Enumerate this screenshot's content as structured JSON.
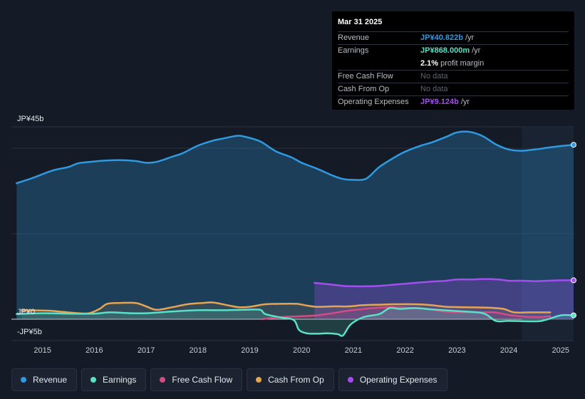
{
  "tooltip": {
    "date": "Mar 31 2025",
    "rows": [
      {
        "label": "Revenue",
        "value": "JP¥40.822b",
        "unit": "/yr",
        "color": "#2f9ae0"
      },
      {
        "label": "Earnings",
        "value": "JP¥868.000m",
        "unit": "/yr",
        "color": "#5ae0c6"
      },
      {
        "label": "",
        "value": "2.1%",
        "unit": "profit margin",
        "color": "#ffffff"
      },
      {
        "label": "Free Cash Flow",
        "value": "No data",
        "unit": "",
        "color": "#5c6370"
      },
      {
        "label": "Cash From Op",
        "value": "No data",
        "unit": "",
        "color": "#5c6370"
      },
      {
        "label": "Operating Expenses",
        "value": "JP¥9.124b",
        "unit": "/yr",
        "color": "#a54ef0"
      }
    ]
  },
  "legend": [
    {
      "label": "Revenue",
      "color": "#2f9ae0"
    },
    {
      "label": "Earnings",
      "color": "#5ae0c6"
    },
    {
      "label": "Free Cash Flow",
      "color": "#d14d83"
    },
    {
      "label": "Cash From Op",
      "color": "#e5a552"
    },
    {
      "label": "Operating Expenses",
      "color": "#a54ef0"
    }
  ],
  "chart_data": {
    "type": "line",
    "y_axis_labels": [
      "JP¥45b",
      "JP¥0",
      "-JP¥5b"
    ],
    "ylim": [
      -5,
      45
    ],
    "x_ticks": [
      "2015",
      "2016",
      "2017",
      "2018",
      "2019",
      "2020",
      "2021",
      "2022",
      "2023",
      "2024",
      "2025"
    ],
    "xlim": [
      2014.4,
      2025.25
    ],
    "forecast_start": 2024.25,
    "series": [
      {
        "name": "Revenue",
        "color": "#2f9ae0",
        "points": [
          [
            2014.5,
            31.8
          ],
          [
            2014.8,
            33
          ],
          [
            2015.2,
            34.8
          ],
          [
            2015.5,
            35.6
          ],
          [
            2015.7,
            36.5
          ],
          [
            2016.0,
            36.9
          ],
          [
            2016.2,
            37.1
          ],
          [
            2016.5,
            37.2
          ],
          [
            2016.8,
            37
          ],
          [
            2017.0,
            36.6
          ],
          [
            2017.2,
            36.8
          ],
          [
            2017.5,
            38
          ],
          [
            2017.7,
            38.8
          ],
          [
            2018.0,
            40.6
          ],
          [
            2018.3,
            41.8
          ],
          [
            2018.5,
            42.3
          ],
          [
            2018.75,
            42.9
          ],
          [
            2018.9,
            42.7
          ],
          [
            2019.2,
            41.6
          ],
          [
            2019.5,
            39.3
          ],
          [
            2019.8,
            37.9
          ],
          [
            2020.0,
            36.6
          ],
          [
            2020.3,
            35.2
          ],
          [
            2020.6,
            33.6
          ],
          [
            2020.8,
            32.8
          ],
          [
            2021.0,
            32.6
          ],
          [
            2021.25,
            32.9
          ],
          [
            2021.5,
            35.6
          ],
          [
            2021.8,
            37.9
          ],
          [
            2022.0,
            39.2
          ],
          [
            2022.3,
            40.6
          ],
          [
            2022.5,
            41.3
          ],
          [
            2022.8,
            42.7
          ],
          [
            2023.0,
            43.7
          ],
          [
            2023.25,
            43.8
          ],
          [
            2023.5,
            42.8
          ],
          [
            2023.75,
            40.9
          ],
          [
            2024.0,
            39.7
          ],
          [
            2024.25,
            39.4
          ],
          [
            2024.5,
            39.7
          ],
          [
            2024.8,
            40.2
          ],
          [
            2025.0,
            40.5
          ],
          [
            2025.25,
            40.8
          ]
        ]
      },
      {
        "name": "Earnings",
        "color": "#5ae0c6",
        "points": [
          [
            2014.5,
            1.2
          ],
          [
            2015.0,
            1.4
          ],
          [
            2015.5,
            1.3
          ],
          [
            2016.0,
            1.3
          ],
          [
            2016.3,
            1.6
          ],
          [
            2016.7,
            1.4
          ],
          [
            2017.0,
            1.4
          ],
          [
            2017.5,
            1.8
          ],
          [
            2018.0,
            2.1
          ],
          [
            2018.5,
            2.1
          ],
          [
            2018.9,
            2.2
          ],
          [
            2019.2,
            2.2
          ],
          [
            2019.3,
            1.2
          ],
          [
            2019.6,
            0.4
          ],
          [
            2019.85,
            -0.2
          ],
          [
            2019.95,
            -2.5
          ],
          [
            2020.1,
            -3.3
          ],
          [
            2020.3,
            -3.4
          ],
          [
            2020.5,
            -3.3
          ],
          [
            2020.7,
            -3.5
          ],
          [
            2020.8,
            -3.8
          ],
          [
            2020.95,
            -1.2
          ],
          [
            2021.2,
            0.5
          ],
          [
            2021.5,
            1.2
          ],
          [
            2021.7,
            2.6
          ],
          [
            2021.9,
            2.4
          ],
          [
            2022.2,
            2.6
          ],
          [
            2022.5,
            2.3
          ],
          [
            2023.0,
            1.9
          ],
          [
            2023.5,
            1.4
          ],
          [
            2023.75,
            -0.4
          ],
          [
            2024.0,
            -0.4
          ],
          [
            2024.5,
            -0.5
          ],
          [
            2024.7,
            -0.2
          ],
          [
            2025.0,
            0.9
          ],
          [
            2025.25,
            0.9
          ]
        ]
      },
      {
        "name": "Free Cash Flow",
        "color": "#d14d83",
        "points": [
          [
            2019.25,
            0
          ],
          [
            2019.5,
            0.4
          ],
          [
            2019.8,
            0.6
          ],
          [
            2020.0,
            0.7
          ],
          [
            2020.3,
            0.9
          ],
          [
            2020.6,
            1.4
          ],
          [
            2020.9,
            2.0
          ],
          [
            2021.2,
            2.4
          ],
          [
            2021.5,
            2.7
          ],
          [
            2021.8,
            2.8
          ],
          [
            2022.2,
            2.6
          ],
          [
            2022.5,
            2.3
          ],
          [
            2022.8,
            1.7
          ],
          [
            2023.2,
            1.6
          ],
          [
            2023.7,
            1.6
          ],
          [
            2024.0,
            1.0
          ],
          [
            2024.3,
            0.6
          ],
          [
            2024.6,
            0.5
          ],
          [
            2024.8,
            0.7
          ]
        ]
      },
      {
        "name": "Cash From Op",
        "color": "#e5a552",
        "points": [
          [
            2014.6,
            2.1
          ],
          [
            2015.1,
            2.0
          ],
          [
            2015.4,
            1.7
          ],
          [
            2015.7,
            1.4
          ],
          [
            2015.9,
            1.4
          ],
          [
            2016.1,
            2.4
          ],
          [
            2016.25,
            3.6
          ],
          [
            2016.5,
            3.8
          ],
          [
            2016.8,
            3.8
          ],
          [
            2017.0,
            3.0
          ],
          [
            2017.2,
            2.2
          ],
          [
            2017.5,
            2.8
          ],
          [
            2017.8,
            3.5
          ],
          [
            2018.1,
            3.8
          ],
          [
            2018.3,
            3.9
          ],
          [
            2018.6,
            3.2
          ],
          [
            2018.8,
            2.8
          ],
          [
            2019.0,
            2.9
          ],
          [
            2019.3,
            3.5
          ],
          [
            2019.6,
            3.6
          ],
          [
            2019.9,
            3.6
          ],
          [
            2020.1,
            3.2
          ],
          [
            2020.3,
            2.9
          ],
          [
            2020.6,
            3.0
          ],
          [
            2020.9,
            3.0
          ],
          [
            2021.2,
            3.3
          ],
          [
            2021.5,
            3.4
          ],
          [
            2021.8,
            3.5
          ],
          [
            2022.2,
            3.5
          ],
          [
            2022.5,
            3.3
          ],
          [
            2022.8,
            2.9
          ],
          [
            2023.2,
            2.8
          ],
          [
            2023.6,
            2.7
          ],
          [
            2023.9,
            2.4
          ],
          [
            2024.1,
            1.6
          ],
          [
            2024.4,
            1.6
          ],
          [
            2024.8,
            1.6
          ]
        ]
      },
      {
        "name": "Operating Expenses",
        "color": "#a54ef0",
        "points": [
          [
            2020.25,
            8.5
          ],
          [
            2020.5,
            8.2
          ],
          [
            2020.8,
            7.8
          ],
          [
            2021.0,
            7.7
          ],
          [
            2021.25,
            7.7
          ],
          [
            2021.5,
            7.8
          ],
          [
            2021.8,
            8.1
          ],
          [
            2022.0,
            8.3
          ],
          [
            2022.3,
            8.6
          ],
          [
            2022.5,
            8.8
          ],
          [
            2022.8,
            9.0
          ],
          [
            2023.0,
            9.3
          ],
          [
            2023.3,
            9.3
          ],
          [
            2023.5,
            9.4
          ],
          [
            2023.8,
            9.3
          ],
          [
            2024.0,
            9.0
          ],
          [
            2024.25,
            9.0
          ],
          [
            2024.5,
            8.9
          ],
          [
            2024.75,
            9.0
          ],
          [
            2025.0,
            9.1
          ],
          [
            2025.25,
            9.1
          ]
        ]
      }
    ]
  }
}
